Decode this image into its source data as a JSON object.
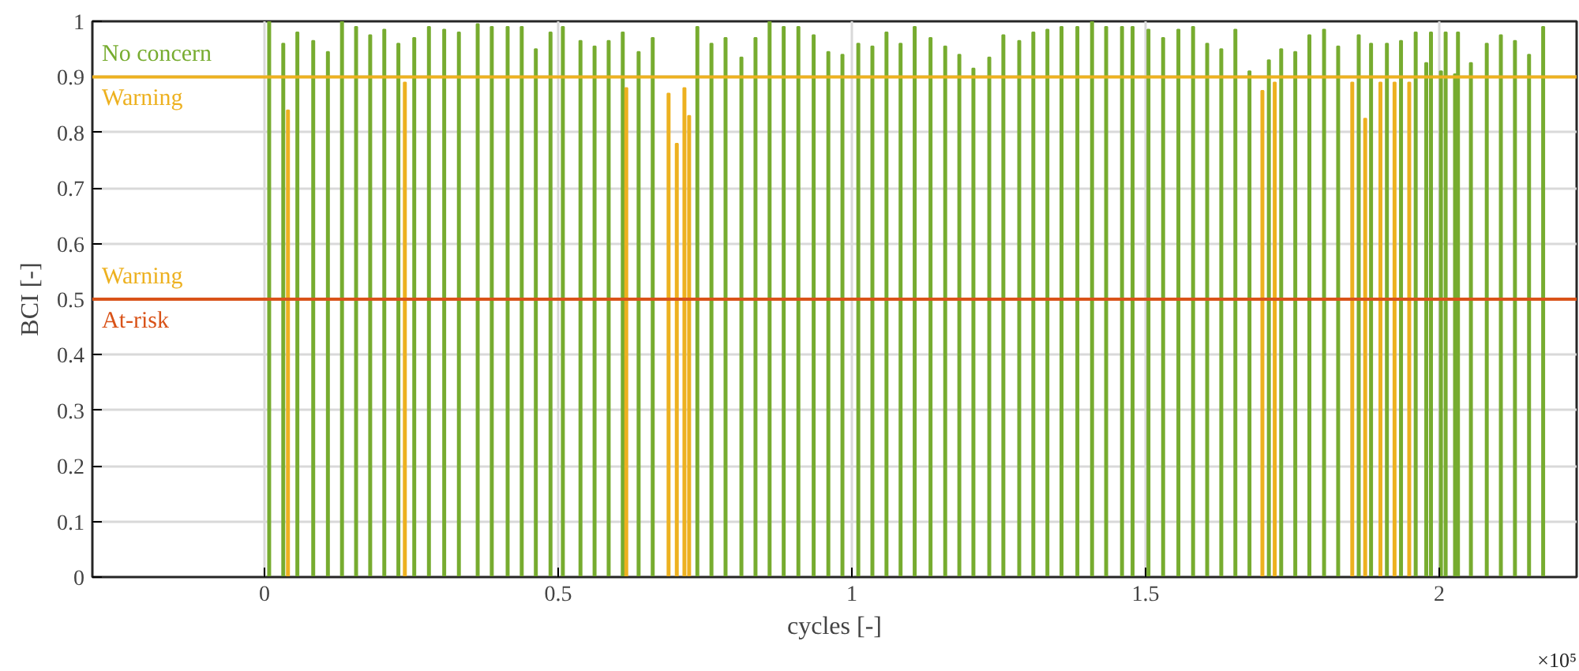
{
  "chart_data": {
    "type": "bar",
    "xlabel": "cycles [-]",
    "ylabel": "BCI [-]",
    "x": [
      0.008,
      0.032,
      0.04,
      0.056,
      0.083,
      0.108,
      0.132,
      0.156,
      0.18,
      0.204,
      0.228,
      0.239,
      0.255,
      0.28,
      0.306,
      0.331,
      0.363,
      0.387,
      0.414,
      0.438,
      0.462,
      0.487,
      0.508,
      0.538,
      0.562,
      0.586,
      0.61,
      0.616,
      0.637,
      0.661,
      0.688,
      0.702,
      0.715,
      0.723,
      0.737,
      0.761,
      0.785,
      0.812,
      0.836,
      0.86,
      0.884,
      0.909,
      0.935,
      0.96,
      0.984,
      1.011,
      1.035,
      1.059,
      1.083,
      1.107,
      1.134,
      1.159,
      1.183,
      1.207,
      1.234,
      1.258,
      1.285,
      1.309,
      1.333,
      1.357,
      1.384,
      1.409,
      1.433,
      1.46,
      1.478,
      1.505,
      1.53,
      1.556,
      1.581,
      1.605,
      1.629,
      1.653,
      1.677,
      1.699,
      1.71,
      1.72,
      1.731,
      1.755,
      1.779,
      1.804,
      1.828,
      1.852,
      1.863,
      1.874,
      1.884,
      1.9,
      1.911,
      1.924,
      1.935,
      1.949,
      1.96,
      1.978,
      1.986,
      2.003,
      2.011,
      2.027,
      2.032,
      2.054,
      2.081,
      2.105,
      2.129,
      2.153,
      2.177
    ],
    "values": [
      1.0,
      0.96,
      0.84,
      0.98,
      0.965,
      0.945,
      1.0,
      0.99,
      0.975,
      0.985,
      0.96,
      0.89,
      0.97,
      0.99,
      0.985,
      0.98,
      0.995,
      0.99,
      0.99,
      0.99,
      0.95,
      0.98,
      0.99,
      0.965,
      0.955,
      0.965,
      0.98,
      0.88,
      0.945,
      0.97,
      0.87,
      0.78,
      0.88,
      0.83,
      0.99,
      0.96,
      0.97,
      0.935,
      0.97,
      1.0,
      0.99,
      0.99,
      0.975,
      0.945,
      0.94,
      0.96,
      0.955,
      0.98,
      0.96,
      0.99,
      0.97,
      0.955,
      0.94,
      0.915,
      0.935,
      0.975,
      0.965,
      0.98,
      0.985,
      0.99,
      0.99,
      1.0,
      0.99,
      0.99,
      0.99,
      0.985,
      0.97,
      0.985,
      0.99,
      0.96,
      0.95,
      0.985,
      0.91,
      0.875,
      0.93,
      0.89,
      0.95,
      0.945,
      0.975,
      0.985,
      0.955,
      0.89,
      0.975,
      0.825,
      0.96,
      0.89,
      0.96,
      0.89,
      0.965,
      0.89,
      0.98,
      0.925,
      0.98,
      0.91,
      0.98,
      0.905,
      0.98,
      0.925,
      0.96,
      0.975,
      0.965,
      0.94,
      0.99
    ],
    "colors": [
      "#77ac30",
      "#77ac30",
      "#edb120",
      "#77ac30",
      "#77ac30",
      "#77ac30",
      "#77ac30",
      "#77ac30",
      "#77ac30",
      "#77ac30",
      "#77ac30",
      "#edb120",
      "#77ac30",
      "#77ac30",
      "#77ac30",
      "#77ac30",
      "#77ac30",
      "#77ac30",
      "#77ac30",
      "#77ac30",
      "#77ac30",
      "#77ac30",
      "#77ac30",
      "#77ac30",
      "#77ac30",
      "#77ac30",
      "#77ac30",
      "#edb120",
      "#77ac30",
      "#77ac30",
      "#edb120",
      "#edb120",
      "#edb120",
      "#edb120",
      "#77ac30",
      "#77ac30",
      "#77ac30",
      "#77ac30",
      "#77ac30",
      "#77ac30",
      "#77ac30",
      "#77ac30",
      "#77ac30",
      "#77ac30",
      "#77ac30",
      "#77ac30",
      "#77ac30",
      "#77ac30",
      "#77ac30",
      "#77ac30",
      "#77ac30",
      "#77ac30",
      "#77ac30",
      "#77ac30",
      "#77ac30",
      "#77ac30",
      "#77ac30",
      "#77ac30",
      "#77ac30",
      "#77ac30",
      "#77ac30",
      "#77ac30",
      "#77ac30",
      "#77ac30",
      "#77ac30",
      "#77ac30",
      "#77ac30",
      "#77ac30",
      "#77ac30",
      "#77ac30",
      "#77ac30",
      "#77ac30",
      "#77ac30",
      "#edb120",
      "#77ac30",
      "#edb120",
      "#77ac30",
      "#77ac30",
      "#77ac30",
      "#77ac30",
      "#77ac30",
      "#edb120",
      "#77ac30",
      "#edb120",
      "#77ac30",
      "#edb120",
      "#77ac30",
      "#edb120",
      "#77ac30",
      "#edb120",
      "#77ac30",
      "#77ac30",
      "#77ac30",
      "#77ac30",
      "#77ac30",
      "#77ac30",
      "#77ac30",
      "#77ac30",
      "#77ac30",
      "#77ac30",
      "#77ac30",
      "#77ac30",
      "#77ac30"
    ],
    "xlim": [
      -0.293,
      2.234
    ],
    "xticks": [
      0,
      0.5,
      1,
      1.5,
      2
    ],
    "ylim": [
      0,
      1
    ],
    "yticks": [
      0,
      0.1,
      0.2,
      0.3,
      0.4,
      0.5,
      0.6,
      0.7,
      0.8,
      0.9,
      1
    ],
    "grid": true,
    "ref_lines": [
      {
        "axis": "y",
        "value": 0.9,
        "color": "#edb120"
      },
      {
        "axis": "y",
        "value": 0.5,
        "color": "#d95319"
      }
    ],
    "annotations": [
      "No concern",
      "Warning",
      "Warning",
      "At-risk",
      "×10⁵"
    ]
  }
}
